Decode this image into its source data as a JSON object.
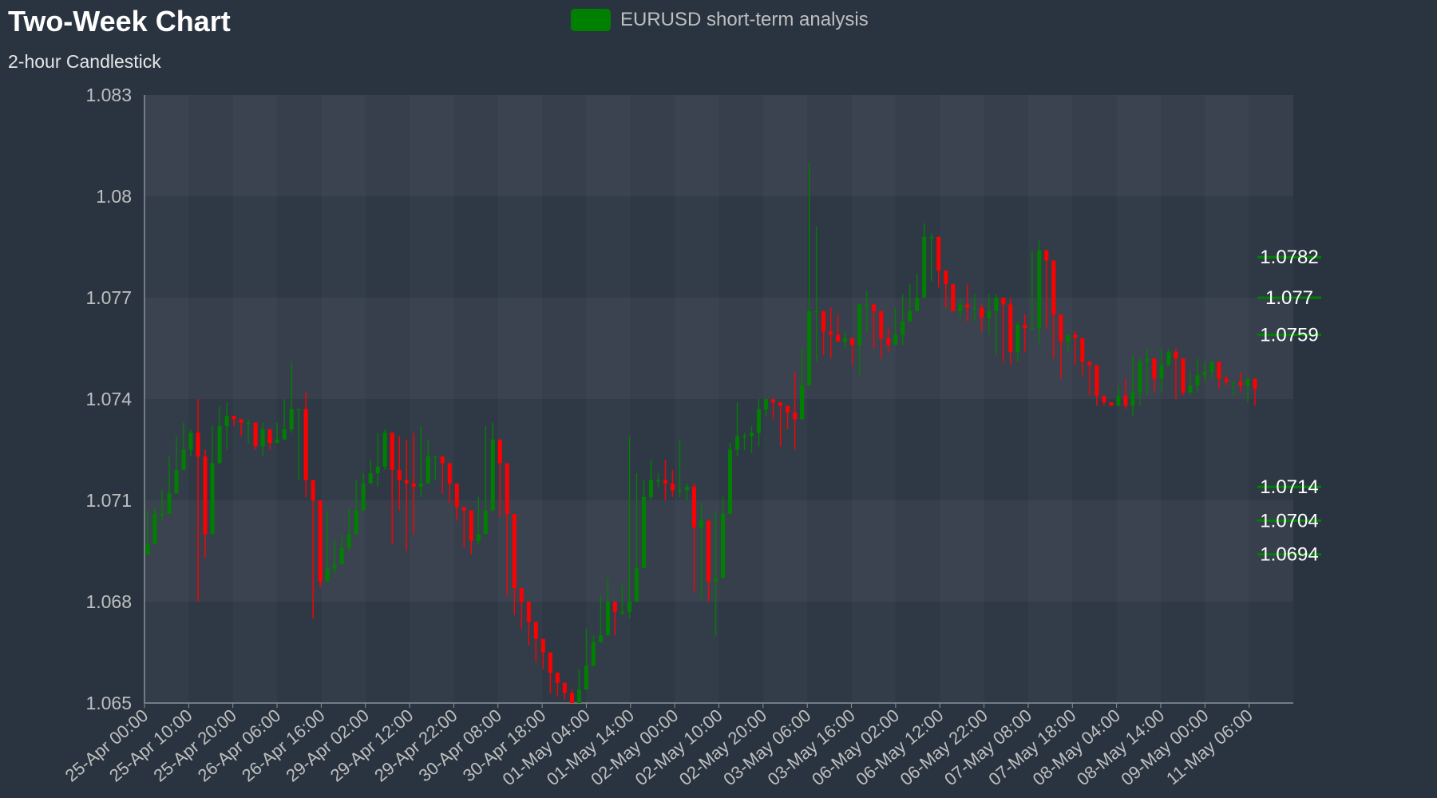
{
  "chart_data": {
    "type": "candlestick",
    "title": "Two-Week Chart",
    "subtitle": "2-hour Candlestick",
    "legend": {
      "label": "EURUSD short-term analysis",
      "placement": "top-center"
    },
    "colors": {
      "up": "#008000",
      "down": "#ff0000",
      "background": "#2a3440",
      "axis_text": "#bfbfbf",
      "level_line": "#008000"
    },
    "ylim": [
      1.065,
      1.083
    ],
    "yticks": [
      "1.065",
      "1.068",
      "1.071",
      "1.074",
      "1.077",
      "1.08",
      "1.083"
    ],
    "xtick_labels": [
      "25-Apr 00:00",
      "25-Apr 10:00",
      "25-Apr 20:00",
      "26-Apr 06:00",
      "26-Apr 16:00",
      "29-Apr 02:00",
      "29-Apr 12:00",
      "29-Apr 22:00",
      "30-Apr 08:00",
      "30-Apr 18:00",
      "01-May 04:00",
      "01-May 14:00",
      "02-May 00:00",
      "02-May 10:00",
      "02-May 20:00",
      "03-May 06:00",
      "03-May 16:00",
      "06-May 02:00",
      "06-May 12:00",
      "06-May 22:00",
      "07-May 08:00",
      "07-May 18:00",
      "08-May 04:00",
      "08-May 14:00",
      "09-May 00:00",
      "11-May 06:00"
    ],
    "levels": [
      {
        "label": "1.0782",
        "value": 1.0782
      },
      {
        "label": "1.077",
        "value": 1.077
      },
      {
        "label": "1.0759",
        "value": 1.0759
      },
      {
        "label": "1.0714",
        "value": 1.0714
      },
      {
        "label": "1.0704",
        "value": 1.0704
      },
      {
        "label": "1.0694",
        "value": 1.0694
      }
    ],
    "candles": [
      [
        1.0697,
        1.0697,
        1.0707,
        1.0696
      ],
      [
        1.0706,
        1.0706,
        1.0708,
        1.0702
      ],
      [
        1.0706,
        1.0706,
        1.0713,
        1.0704
      ],
      [
        1.0712,
        1.0712,
        1.0723,
        1.0712
      ],
      [
        1.0719,
        1.0719,
        1.0729,
        1.0718
      ],
      [
        1.0725,
        1.0725,
        1.0733,
        1.0719
      ],
      [
        1.073,
        1.073,
        1.0731,
        1.0723
      ],
      [
        1.0723,
        1.0723,
        1.074,
        1.068
      ],
      [
        1.07,
        1.07,
        1.0725,
        1.0693
      ],
      [
        1.0721,
        1.0721,
        1.0732,
        1.0711
      ],
      [
        1.0732,
        1.0732,
        1.0738,
        1.0722
      ],
      [
        1.0735,
        1.0735,
        1.0739,
        1.0725
      ],
      [
        1.0734,
        1.0734,
        1.0735,
        1.0732
      ],
      [
        1.0733,
        1.0733,
        1.0734,
        1.0729
      ],
      [
        1.0733,
        1.0733,
        1.0734,
        1.0727
      ],
      [
        1.0726,
        1.0726,
        1.0733,
        1.0725
      ],
      [
        1.0731,
        1.0731,
        1.0733,
        1.0723
      ],
      [
        1.0727,
        1.0727,
        1.0731,
        1.0725
      ],
      [
        1.0728,
        1.0728,
        1.0733,
        1.0727
      ],
      [
        1.0731,
        1.0731,
        1.074,
        1.0728
      ],
      [
        1.0737,
        1.0737,
        1.0751,
        1.073
      ],
      [
        1.0737,
        1.0737,
        1.0737,
        1.0716
      ],
      [
        1.0716,
        1.0716,
        1.0742,
        1.0711
      ],
      [
        1.071,
        1.071,
        1.0714,
        1.0675
      ],
      [
        1.0686,
        1.0686,
        1.0699,
        1.0684
      ],
      [
        1.069,
        1.069,
        1.0707,
        1.0688
      ],
      [
        1.0691,
        1.0691,
        1.0698,
        1.0688
      ],
      [
        1.0696,
        1.0696,
        1.07,
        1.0692
      ],
      [
        1.07,
        1.07,
        1.0708,
        1.0695
      ],
      [
        1.0707,
        1.0707,
        1.0716,
        1.0704
      ],
      [
        1.0715,
        1.0715,
        1.0718,
        1.071
      ],
      [
        1.0718,
        1.0718,
        1.0722,
        1.0716
      ],
      [
        1.072,
        1.072,
        1.073,
        1.0714
      ],
      [
        1.073,
        1.073,
        1.0731,
        1.0719
      ],
      [
        1.0719,
        1.0719,
        1.0724,
        1.0697
      ],
      [
        1.0716,
        1.0716,
        1.0729,
        1.0707
      ],
      [
        1.0715,
        1.0715,
        1.0728,
        1.0695
      ],
      [
        1.0714,
        1.0714,
        1.073,
        1.07
      ],
      [
        1.0715,
        1.0715,
        1.0732,
        1.0711
      ],
      [
        1.0723,
        1.0723,
        1.0728,
        1.0718
      ],
      [
        1.0723,
        1.0723,
        1.0723,
        1.0716
      ],
      [
        1.0721,
        1.0721,
        1.0722,
        1.0712
      ],
      [
        1.0715,
        1.0715,
        1.0719,
        1.0709
      ],
      [
        1.0708,
        1.0708,
        1.071,
        1.0704
      ],
      [
        1.0707,
        1.0707,
        1.0707,
        1.0696
      ],
      [
        1.0698,
        1.0698,
        1.0706,
        1.0694
      ],
      [
        1.07,
        1.07,
        1.0711,
        1.0697
      ],
      [
        1.0707,
        1.0707,
        1.0732,
        1.0702
      ],
      [
        1.0728,
        1.0728,
        1.0733,
        1.0723
      ],
      [
        1.0721,
        1.0721,
        1.0722,
        1.0705
      ],
      [
        1.0706,
        1.0706,
        1.071,
        1.0682
      ],
      [
        1.0684,
        1.0684,
        1.0685,
        1.0676
      ],
      [
        1.068,
        1.068,
        1.0684,
        1.0672
      ],
      [
        1.0674,
        1.0674,
        1.0675,
        1.0667
      ],
      [
        1.0669,
        1.0669,
        1.0669,
        1.0662
      ],
      [
        1.0665,
        1.0665,
        1.0665,
        1.066
      ],
      [
        1.0659,
        1.0659,
        1.0659,
        1.0653
      ],
      [
        1.0656,
        1.0656,
        1.0656,
        1.0652
      ],
      [
        1.0653,
        1.0653,
        1.0656,
        1.0651
      ],
      [
        1.065,
        1.065,
        1.0654,
        1.065
      ],
      [
        1.0654,
        1.0654,
        1.066,
        1.065
      ],
      [
        1.0661,
        1.0661,
        1.0672,
        1.0659
      ],
      [
        1.0668,
        1.0668,
        1.067,
        1.0667
      ],
      [
        1.067,
        1.067,
        1.0682,
        1.0669
      ],
      [
        1.068,
        1.068,
        1.0687,
        1.0676
      ],
      [
        1.0677,
        1.0677,
        1.068,
        1.067
      ],
      [
        1.0677,
        1.0677,
        1.0685,
        1.0676
      ],
      [
        1.068,
        1.068,
        1.0729,
        1.0675
      ],
      [
        1.069,
        1.069,
        1.0718,
        1.0685
      ],
      [
        1.0711,
        1.0711,
        1.0716,
        1.0702
      ],
      [
        1.0716,
        1.0716,
        1.0722,
        1.071
      ],
      [
        1.0716,
        1.0716,
        1.0718,
        1.0714
      ],
      [
        1.0715,
        1.0715,
        1.0722,
        1.071
      ],
      [
        1.0713,
        1.0713,
        1.0719,
        1.0711
      ],
      [
        1.0713,
        1.0713,
        1.0728,
        1.0711
      ],
      [
        1.0714,
        1.0714,
        1.0715,
        1.071
      ],
      [
        1.0702,
        1.0702,
        1.0715,
        1.0683
      ],
      [
        1.0704,
        1.0704,
        1.0709,
        1.0681
      ],
      [
        1.0686,
        1.0686,
        1.0702,
        1.068
      ],
      [
        1.0687,
        1.0687,
        1.0707,
        1.067
      ],
      [
        1.0706,
        1.0706,
        1.0711,
        1.07
      ],
      [
        1.0725,
        1.0725,
        1.0727,
        1.0718
      ],
      [
        1.0729,
        1.0729,
        1.0739,
        1.0723
      ],
      [
        1.0729,
        1.0729,
        1.073,
        1.0725
      ],
      [
        1.073,
        1.073,
        1.0732,
        1.0724
      ],
      [
        1.0737,
        1.0737,
        1.074,
        1.0726
      ],
      [
        1.074,
        1.074,
        1.074,
        1.0735
      ],
      [
        1.0739,
        1.0739,
        1.074,
        1.0734
      ],
      [
        1.0738,
        1.0738,
        1.0739,
        1.0726
      ],
      [
        1.0736,
        1.0736,
        1.0736,
        1.0731
      ],
      [
        1.0734,
        1.0734,
        1.0748,
        1.0725
      ],
      [
        1.0744,
        1.0744,
        1.0755,
        1.074
      ],
      [
        1.0766,
        1.0766,
        1.081,
        1.0744
      ],
      [
        1.0766,
        1.0766,
        1.0791,
        1.0751
      ],
      [
        1.076,
        1.076,
        1.0761,
        1.0753
      ],
      [
        1.0759,
        1.0759,
        1.0767,
        1.0752
      ],
      [
        1.0757,
        1.0757,
        1.0765,
        1.0757
      ],
      [
        1.0758,
        1.0758,
        1.076,
        1.0755
      ],
      [
        1.0756,
        1.0756,
        1.0757,
        1.075
      ],
      [
        1.0768,
        1.0768,
        1.0768,
        1.0747
      ],
      [
        1.0768,
        1.0768,
        1.0772,
        1.076
      ],
      [
        1.0766,
        1.0766,
        1.0766,
        1.0755
      ],
      [
        1.0758,
        1.0758,
        1.0766,
        1.0752
      ],
      [
        1.0756,
        1.0756,
        1.0761,
        1.0754
      ],
      [
        1.0759,
        1.0759,
        1.0767,
        1.0756
      ],
      [
        1.0763,
        1.0763,
        1.0771,
        1.0756
      ],
      [
        1.0766,
        1.0766,
        1.0774,
        1.0763
      ],
      [
        1.077,
        1.077,
        1.0777,
        1.0766
      ],
      [
        1.0788,
        1.0788,
        1.0792,
        1.0772
      ],
      [
        1.0788,
        1.0788,
        1.0789,
        1.0775
      ],
      [
        1.0778,
        1.0778,
        1.078,
        1.0773
      ],
      [
        1.0774,
        1.0774,
        1.0775,
        1.0767
      ],
      [
        1.0766,
        1.0766,
        1.0772,
        1.0766
      ],
      [
        1.0768,
        1.0768,
        1.077,
        1.0764
      ],
      [
        1.0767,
        1.0767,
        1.0774,
        1.0763
      ],
      [
        1.0767,
        1.0767,
        1.0771,
        1.0763
      ],
      [
        1.0764,
        1.0764,
        1.0768,
        1.076
      ],
      [
        1.0766,
        1.0766,
        1.0771,
        1.0759
      ],
      [
        1.077,
        1.077,
        1.0771,
        1.0753
      ],
      [
        1.0768,
        1.0768,
        1.077,
        1.0751
      ],
      [
        1.0754,
        1.0754,
        1.077,
        1.075
      ],
      [
        1.0762,
        1.0762,
        1.0763,
        1.0751
      ],
      [
        1.0761,
        1.0761,
        1.0765,
        1.0754
      ],
      [
        1.0761,
        1.0761,
        1.0784,
        1.0761
      ],
      [
        1.0784,
        1.0784,
        1.0787,
        1.0756
      ],
      [
        1.0781,
        1.0781,
        1.0783,
        1.0761
      ],
      [
        1.0765,
        1.0765,
        1.0772,
        1.0752
      ],
      [
        1.0757,
        1.0757,
        1.0758,
        1.0746
      ],
      [
        1.0759,
        1.0759,
        1.0759,
        1.0754
      ],
      [
        1.0758,
        1.0758,
        1.076,
        1.075
      ],
      [
        1.0751,
        1.0751,
        1.0753,
        1.0747
      ],
      [
        1.075,
        1.075,
        1.075,
        1.0741
      ],
      [
        1.0741,
        1.0741,
        1.0743,
        1.0738
      ],
      [
        1.0739,
        1.0739,
        1.0741,
        1.0738
      ],
      [
        1.0738,
        1.0738,
        1.0738,
        1.0739
      ],
      [
        1.0741,
        1.0741,
        1.0744,
        1.0738
      ],
      [
        1.0738,
        1.0738,
        1.0746,
        1.0737
      ],
      [
        1.0742,
        1.0742,
        1.0753,
        1.0735
      ],
      [
        1.0751,
        1.0751,
        1.0752,
        1.0738
      ],
      [
        1.0752,
        1.0752,
        1.0755,
        1.0741
      ],
      [
        1.0746,
        1.0746,
        1.0752,
        1.0742
      ],
      [
        1.075,
        1.075,
        1.0755,
        1.0742
      ],
      [
        1.0754,
        1.0754,
        1.0755,
        1.075
      ],
      [
        1.0752,
        1.0752,
        1.0755,
        1.074
      ],
      [
        1.0742,
        1.0742,
        1.0744,
        1.0741
      ],
      [
        1.0744,
        1.0744,
        1.0748,
        1.0741
      ],
      [
        1.0747,
        1.0747,
        1.0752,
        1.0742
      ],
      [
        1.0748,
        1.0748,
        1.0751,
        1.0745
      ],
      [
        1.0751,
        1.0751,
        1.0751,
        1.0746
      ],
      [
        1.0746,
        1.0746,
        1.075,
        1.0743
      ],
      [
        1.0745,
        1.0745,
        1.0747,
        1.0744
      ],
      [
        1.0745,
        1.0745,
        1.0745,
        1.0741
      ],
      [
        1.0744,
        1.0744,
        1.0748,
        1.0742
      ],
      [
        1.0746,
        1.0746,
        1.0746,
        1.0739
      ],
      [
        1.0743,
        1.0743,
        1.0743,
        1.0738
      ]
    ]
  }
}
